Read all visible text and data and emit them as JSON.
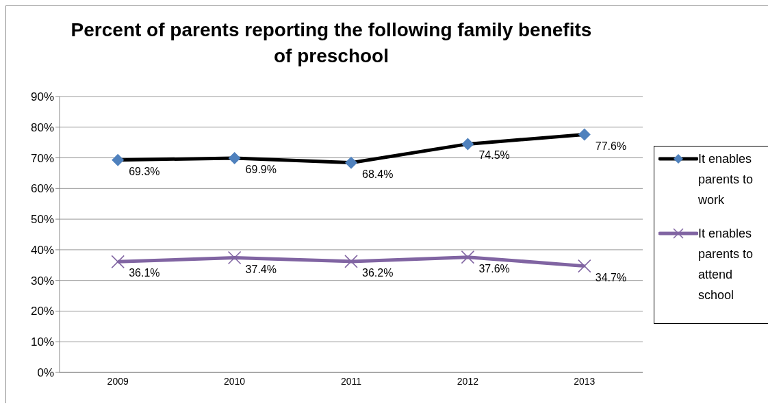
{
  "chart_data": {
    "type": "line",
    "title": "Percent of parents reporting the following family benefits of preschool",
    "categories": [
      "2009",
      "2010",
      "2011",
      "2012",
      "2013"
    ],
    "series": [
      {
        "name": "It enables parents to work",
        "color": "#000000",
        "marker": "diamond",
        "values": [
          69.3,
          69.9,
          68.4,
          74.5,
          77.6
        ],
        "value_labels": [
          "69.3%",
          "69.9%",
          "68.4%",
          "74.5%",
          "77.6%"
        ]
      },
      {
        "name": "It enables parents to attend school",
        "color": "#8064a2",
        "marker": "cross",
        "values": [
          36.1,
          37.4,
          36.2,
          37.6,
          34.7
        ],
        "value_labels": [
          "36.1%",
          "37.4%",
          "36.2%",
          "37.6%",
          "34.7%"
        ]
      }
    ],
    "ylim": [
      0,
      90
    ],
    "yticks": [
      {
        "value": 0,
        "label": "0%"
      },
      {
        "value": 10,
        "label": "10%"
      },
      {
        "value": 20,
        "label": "20%"
      },
      {
        "value": 30,
        "label": "30%"
      },
      {
        "value": 40,
        "label": "40%"
      },
      {
        "value": 50,
        "label": "50%"
      },
      {
        "value": 60,
        "label": "60%"
      },
      {
        "value": 70,
        "label": "70%"
      },
      {
        "value": 80,
        "label": "80%"
      },
      {
        "value": 90,
        "label": "90%"
      }
    ],
    "grid": "y",
    "legend": "right",
    "line_style": "solid"
  }
}
